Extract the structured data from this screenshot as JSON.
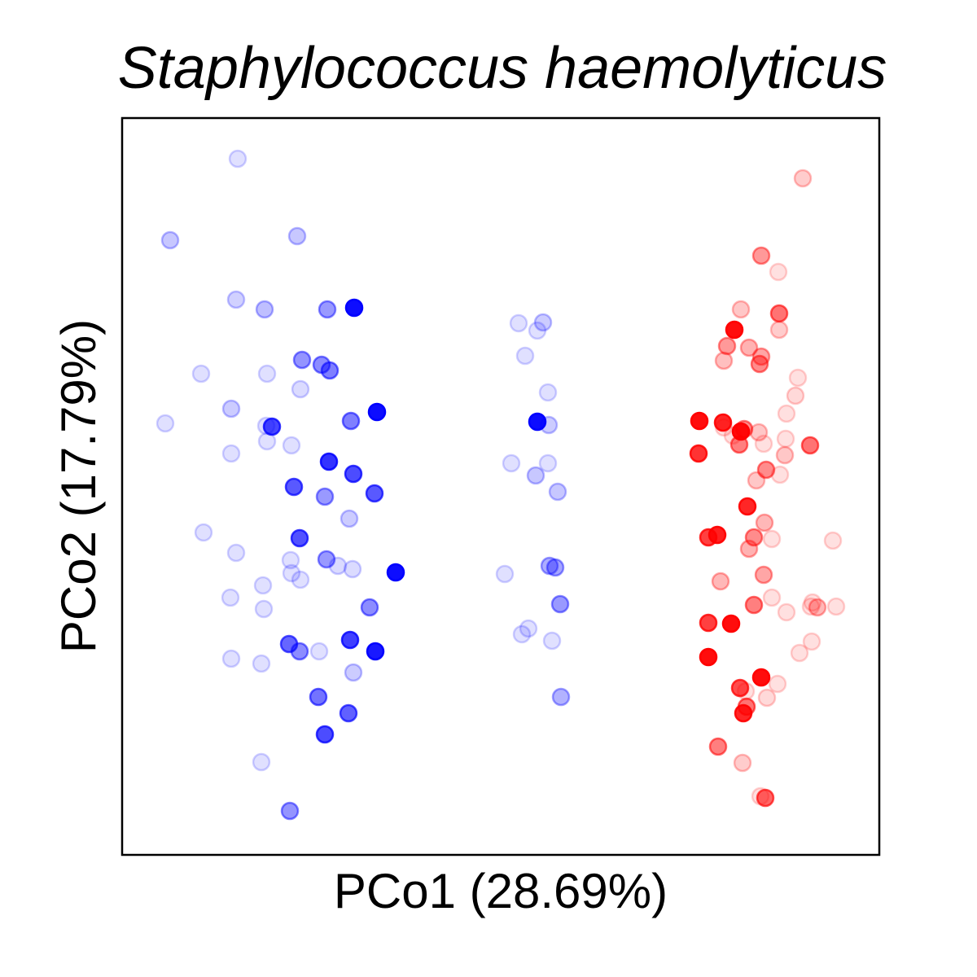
{
  "chart_data": {
    "type": "scatter",
    "title": "Staphylococcus haemolyticus",
    "xlabel": "PCo1 (28.69%)",
    "ylabel": "PCo2 (17.79%)",
    "xlim": [
      0,
      930
    ],
    "ylim": [
      0,
      905
    ],
    "grid": false,
    "legend": "none",
    "series": [
      {
        "color": "#0000ff",
        "points": [
          [
            142,
            855,
            0.12
          ],
          [
            59,
            755,
            0.22
          ],
          [
            215,
            760,
            0.22
          ],
          [
            140,
            682,
            0.18
          ],
          [
            175,
            670,
            0.25
          ],
          [
            285,
            672,
            0.95
          ],
          [
            252,
            670,
            0.4
          ],
          [
            221,
            608,
            0.42
          ],
          [
            245,
            602,
            0.45
          ],
          [
            255,
            595,
            0.5
          ],
          [
            178,
            591,
            0.12
          ],
          [
            219,
            572,
            0.14
          ],
          [
            97,
            591,
            0.12
          ],
          [
            53,
            530,
            0.12
          ],
          [
            134,
            548,
            0.2
          ],
          [
            177,
            527,
            0.12
          ],
          [
            184,
            526,
            0.72
          ],
          [
            178,
            508,
            0.12
          ],
          [
            208,
            503,
            0.12
          ],
          [
            281,
            533,
            0.5
          ],
          [
            313,
            544,
            0.95
          ],
          [
            254,
            483,
            0.8
          ],
          [
            284,
            468,
            0.7
          ],
          [
            211,
            452,
            0.65
          ],
          [
            249,
            440,
            0.4
          ],
          [
            310,
            444,
            0.65
          ],
          [
            134,
            493,
            0.12
          ],
          [
            100,
            396,
            0.12
          ],
          [
            218,
            389,
            0.68
          ],
          [
            279,
            413,
            0.2
          ],
          [
            140,
            371,
            0.12
          ],
          [
            207,
            362,
            0.12
          ],
          [
            251,
            363,
            0.4
          ],
          [
            265,
            355,
            0.14
          ],
          [
            283,
            351,
            0.14
          ],
          [
            336,
            347,
            0.95
          ],
          [
            208,
            346,
            0.12
          ],
          [
            219,
            338,
            0.12
          ],
          [
            173,
            331,
            0.12
          ],
          [
            133,
            316,
            0.12
          ],
          [
            304,
            304,
            0.45
          ],
          [
            174,
            302,
            0.12
          ],
          [
            280,
            264,
            0.75
          ],
          [
            205,
            259,
            0.6
          ],
          [
            218,
            250,
            0.45
          ],
          [
            242,
            250,
            0.12
          ],
          [
            311,
            250,
            0.9
          ],
          [
            284,
            224,
            0.2
          ],
          [
            171,
            235,
            0.12
          ],
          [
            134,
            241,
            0.12
          ],
          [
            171,
            114,
            0.12
          ],
          [
            241,
            194,
            0.55
          ],
          [
            278,
            174,
            0.62
          ],
          [
            249,
            148,
            0.7
          ],
          [
            206,
            54,
            0.42
          ],
          [
            510,
            644,
            0.12
          ],
          [
            487,
            653,
            0.12
          ],
          [
            517,
            654,
            0.2
          ],
          [
            495,
            613,
            0.12
          ],
          [
            523,
            568,
            0.12
          ],
          [
            510,
            532,
            0.95
          ],
          [
            524,
            528,
            0.2
          ],
          [
            478,
            481,
            0.12
          ],
          [
            523,
            481,
            0.12
          ],
          [
            508,
            466,
            0.22
          ],
          [
            535,
            446,
            0.22
          ],
          [
            470,
            345,
            0.12
          ],
          [
            525,
            355,
            0.32
          ],
          [
            532,
            353,
            0.35
          ],
          [
            538,
            308,
            0.4
          ],
          [
            499,
            278,
            0.12
          ],
          [
            528,
            263,
            0.12
          ],
          [
            491,
            271,
            0.12
          ],
          [
            539,
            194,
            0.3
          ]
        ]
      },
      {
        "color": "#ff0000",
        "points": [
          [
            836,
            831,
            0.2
          ],
          [
            785,
            736,
            0.4
          ],
          [
            806,
            716,
            0.12
          ],
          [
            760,
            670,
            0.22
          ],
          [
            807,
            665,
            0.55
          ],
          [
            752,
            645,
            0.95
          ],
          [
            807,
            645,
            0.2
          ],
          [
            743,
            625,
            0.4
          ],
          [
            770,
            623,
            0.3
          ],
          [
            785,
            612,
            0.35
          ],
          [
            739,
            607,
            0.25
          ],
          [
            783,
            603,
            0.45
          ],
          [
            830,
            586,
            0.12
          ],
          [
            827,
            564,
            0.15
          ],
          [
            709,
            533,
            0.95
          ],
          [
            738,
            531,
            0.85
          ],
          [
            760,
            520,
            0.95
          ],
          [
            788,
            505,
            0.12
          ],
          [
            739,
            525,
            0.12
          ],
          [
            750,
            515,
            0.12
          ],
          [
            764,
            523,
            0.45
          ],
          [
            782,
            519,
            0.22
          ],
          [
            816,
            542,
            0.12
          ],
          [
            815,
            511,
            0.12
          ],
          [
            758,
            504,
            0.5
          ],
          [
            791,
            473,
            0.45
          ],
          [
            814,
            491,
            0.22
          ],
          [
            779,
            460,
            0.22
          ],
          [
            808,
            467,
            0.12
          ],
          [
            845,
            503,
            0.55
          ],
          [
            708,
            493,
            0.8
          ],
          [
            768,
            428,
            0.85
          ],
          [
            789,
            408,
            0.28
          ],
          [
            776,
            390,
            0.45
          ],
          [
            731,
            393,
            0.88
          ],
          [
            770,
            376,
            0.3
          ],
          [
            720,
            390,
            0.75
          ],
          [
            798,
            388,
            0.12
          ],
          [
            873,
            386,
            0.12
          ],
          [
            735,
            336,
            0.28
          ],
          [
            776,
            307,
            0.5
          ],
          [
            854,
            304,
            0.28
          ],
          [
            788,
            344,
            0.35
          ],
          [
            748,
            284,
            0.95
          ],
          [
            720,
            285,
            0.75
          ],
          [
            798,
            316,
            0.12
          ],
          [
            816,
            298,
            0.12
          ],
          [
            847,
            262,
            0.12
          ],
          [
            848,
            310,
            0.12
          ],
          [
            846,
            305,
            0.12
          ],
          [
            720,
            243,
            0.95
          ],
          [
            785,
            218,
            0.95
          ],
          [
            759,
            205,
            0.7
          ],
          [
            767,
            182,
            0.55
          ],
          [
            763,
            174,
            0.85
          ],
          [
            732,
            133,
            0.5
          ],
          [
            762,
            113,
            0.2
          ],
          [
            790,
            70,
            0.6
          ],
          [
            784,
            72,
            0.12
          ],
          [
            766,
            201,
            0.12
          ],
          [
            792,
            193,
            0.15
          ],
          [
            805,
            210,
            0.12
          ],
          [
            832,
            248,
            0.12
          ],
          [
            877,
            305,
            0.12
          ]
        ]
      }
    ]
  }
}
